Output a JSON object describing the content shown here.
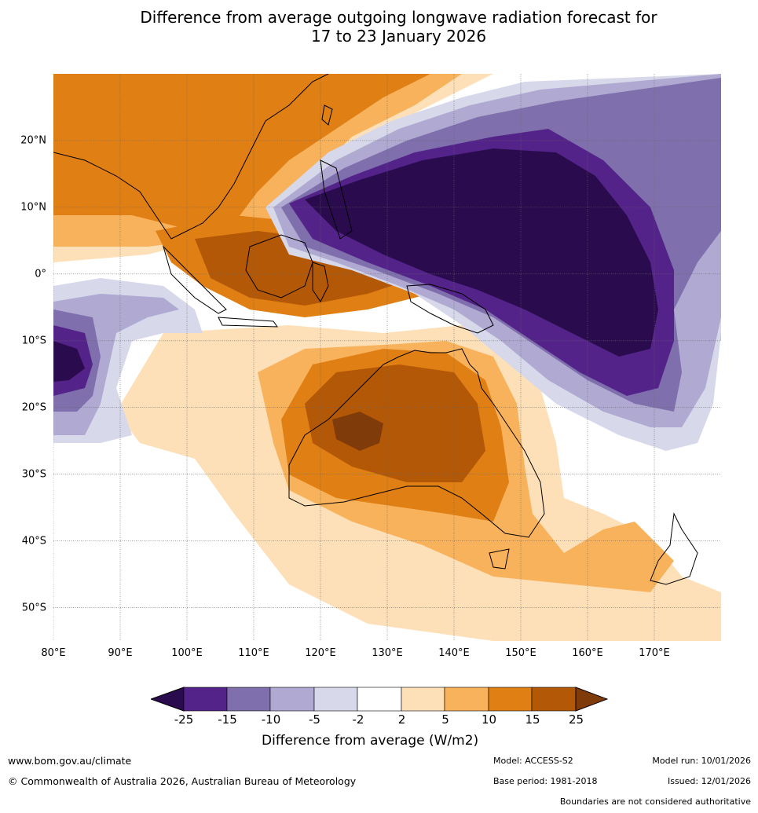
{
  "title": {
    "line1": "Difference from average outgoing longwave radiation forecast for",
    "line2": "17 to 23 January 2026"
  },
  "map": {
    "lat_labels": [
      "20°N",
      "10°N",
      "0°",
      "10°S",
      "20°S",
      "30°S",
      "40°S",
      "50°S"
    ],
    "lon_labels": [
      "80°E",
      "90°E",
      "100°E",
      "110°E",
      "120°E",
      "130°E",
      "140°E",
      "150°E",
      "160°E",
      "170°E"
    ],
    "extent": {
      "lon_min": 80,
      "lon_max": 180,
      "lat_min": -55,
      "lat_max": 30
    },
    "palette": {
      "lt_m25": "#2a0c4e",
      "m25_m15": "#53238a",
      "m15_m10": "#7f6fac",
      "m10_m5": "#b0aad2",
      "m5_m2": "#d7d8ea",
      "m2_2": "#ffffff",
      "p2_p5": "#fde0b8",
      "p5_p10": "#f9b25c",
      "p10_p15": "#e07f14",
      "p15_p25": "#b35806",
      "gt_p25": "#7f3b0a"
    }
  },
  "colorbar": {
    "ticks": [
      "-25",
      "-15",
      "-10",
      "-5",
      "-2",
      "2",
      "5",
      "10",
      "15",
      "25"
    ],
    "title": "Difference from average (W/m2)"
  },
  "footer": {
    "website": "www.bom.gov.au/climate",
    "copyright": "© Commonwealth of Australia 2026, Australian Bureau of Meteorology",
    "model": "Model: ACCESS-S2",
    "base_period": "Base period: 1981-2018",
    "model_run": "Model run: 10/01/2026",
    "issued": "Issued: 12/01/2026",
    "disclaimer": "Boundaries are not considered authoritative"
  }
}
